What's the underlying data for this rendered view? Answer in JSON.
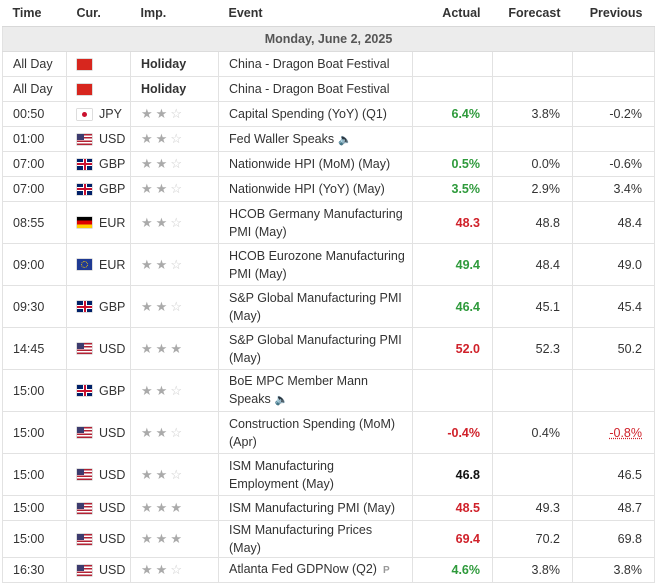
{
  "columns": {
    "time": "Time",
    "cur": "Cur.",
    "imp": "Imp.",
    "event": "Event",
    "actual": "Actual",
    "forecast": "Forecast",
    "previous": "Previous"
  },
  "date_header": "Monday, June 2, 2025",
  "holidays": [
    {
      "time": "All Day",
      "flag": "cn",
      "label": "Holiday",
      "event": "China - Dragon Boat Festival"
    },
    {
      "time": "All Day",
      "flag": "cn",
      "label": "Holiday",
      "event": "China - Dragon Boat Festival"
    }
  ],
  "rows": [
    {
      "time": "00:50",
      "flag": "jp",
      "cur": "JPY",
      "stars": 2,
      "event": "Capital Spending (YoY) (Q1)",
      "actual": "6.4%",
      "actual_color": "green",
      "forecast": "3.8%",
      "previous": "-0.2%",
      "prev_style": "normal",
      "tall": false,
      "icon": ""
    },
    {
      "time": "01:00",
      "flag": "us",
      "cur": "USD",
      "stars": 2,
      "event": "Fed Waller Speaks",
      "actual": "",
      "actual_color": "",
      "forecast": "",
      "previous": "",
      "prev_style": "normal",
      "tall": false,
      "icon": "speaker"
    },
    {
      "time": "07:00",
      "flag": "gb",
      "cur": "GBP",
      "stars": 2,
      "event": "Nationwide HPI (MoM) (May)",
      "actual": "0.5%",
      "actual_color": "green",
      "forecast": "0.0%",
      "previous": "-0.6%",
      "prev_style": "normal",
      "tall": false,
      "icon": ""
    },
    {
      "time": "07:00",
      "flag": "gb",
      "cur": "GBP",
      "stars": 2,
      "event": "Nationwide HPI (YoY) (May)",
      "actual": "3.5%",
      "actual_color": "green",
      "forecast": "2.9%",
      "previous": "3.4%",
      "prev_style": "normal",
      "tall": false,
      "icon": ""
    },
    {
      "time": "08:55",
      "flag": "de",
      "cur": "EUR",
      "stars": 2,
      "event": "HCOB Germany Manufacturing PMI (May)",
      "actual": "48.3",
      "actual_color": "red",
      "forecast": "48.8",
      "previous": "48.4",
      "prev_style": "normal",
      "tall": true,
      "icon": ""
    },
    {
      "time": "09:00",
      "flag": "eu",
      "cur": "EUR",
      "stars": 2,
      "event": "HCOB Eurozone Manufacturing PMI (May)",
      "actual": "49.4",
      "actual_color": "green",
      "forecast": "48.4",
      "previous": "49.0",
      "prev_style": "normal",
      "tall": true,
      "icon": ""
    },
    {
      "time": "09:30",
      "flag": "gb",
      "cur": "GBP",
      "stars": 2,
      "event": "S&P Global Manufacturing PMI (May)",
      "actual": "46.4",
      "actual_color": "green",
      "forecast": "45.1",
      "previous": "45.4",
      "prev_style": "normal",
      "tall": true,
      "icon": ""
    },
    {
      "time": "14:45",
      "flag": "us",
      "cur": "USD",
      "stars": 3,
      "event": "S&P Global Manufacturing PMI (May)",
      "actual": "52.0",
      "actual_color": "red",
      "forecast": "52.3",
      "previous": "50.2",
      "prev_style": "normal",
      "tall": true,
      "icon": ""
    },
    {
      "time": "15:00",
      "flag": "gb",
      "cur": "GBP",
      "stars": 2,
      "event": "BoE MPC Member Mann Speaks",
      "actual": "",
      "actual_color": "",
      "forecast": "",
      "previous": "",
      "prev_style": "normal",
      "tall": true,
      "icon": "speaker"
    },
    {
      "time": "15:00",
      "flag": "us",
      "cur": "USD",
      "stars": 2,
      "event": "Construction Spending (MoM) (Apr)",
      "actual": "-0.4%",
      "actual_color": "red",
      "forecast": "0.4%",
      "previous": "-0.8%",
      "prev_style": "revised",
      "tall": true,
      "icon": ""
    },
    {
      "time": "15:00",
      "flag": "us",
      "cur": "USD",
      "stars": 2,
      "event": "ISM Manufacturing Employment (May)",
      "actual": "46.8",
      "actual_color": "black",
      "forecast": "",
      "previous": "46.5",
      "prev_style": "normal",
      "tall": true,
      "icon": ""
    },
    {
      "time": "15:00",
      "flag": "us",
      "cur": "USD",
      "stars": 3,
      "event": "ISM Manufacturing PMI (May)",
      "actual": "48.5",
      "actual_color": "red",
      "forecast": "49.3",
      "previous": "48.7",
      "prev_style": "normal",
      "tall": false,
      "icon": ""
    },
    {
      "time": "15:00",
      "flag": "us",
      "cur": "USD",
      "stars": 3,
      "event": "ISM Manufacturing Prices (May)",
      "actual": "69.4",
      "actual_color": "red",
      "forecast": "70.2",
      "previous": "69.8",
      "prev_style": "normal",
      "tall": false,
      "icon": ""
    },
    {
      "time": "16:30",
      "flag": "us",
      "cur": "USD",
      "stars": 2,
      "event": "Atlanta Fed GDPNow (Q2)",
      "actual": "4.6%",
      "actual_color": "green",
      "forecast": "3.8%",
      "previous": "3.8%",
      "prev_style": "normal",
      "tall": false,
      "icon": "p"
    }
  ]
}
